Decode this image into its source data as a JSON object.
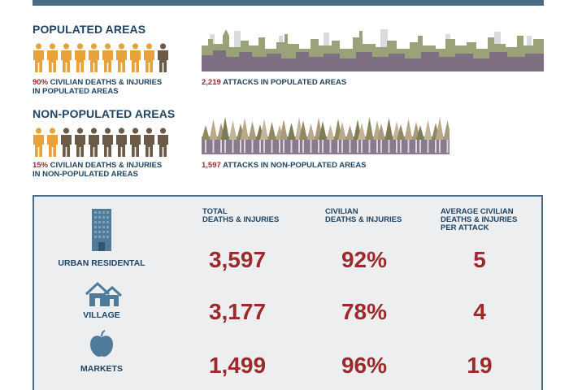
{
  "populated": {
    "heading": "POPULATED AREAS",
    "civilian_share": 0.9,
    "caption_pct": "90%",
    "caption_line1_rest": " CIVILIAN DEATHS & INJURIES",
    "caption_line2": "IN POPULATED AREAS",
    "attacks_num": "2,219",
    "attacks_rest": " ATTACKS IN POPULATED AREAS"
  },
  "nonpopulated": {
    "heading": "NON-POPULATED AREAS",
    "civilian_share": 0.15,
    "caption_pct": "15%",
    "caption_line1_rest": " CIVILIAN DEATHS & INJURIES",
    "caption_line2": "IN NON-POPULATED AREAS",
    "attacks_num": "1,597",
    "attacks_rest": " ATTACKS IN NON-POPULATED AREAS"
  },
  "colors": {
    "civilian": "#e8a23c",
    "other": "#6b5a45",
    "accent_red": "#9b2a2a",
    "navy": "#1f4464",
    "icon_blue": "#4f7a99",
    "city_front": "#7f6f83",
    "city_back": "#9aa27a"
  },
  "table": {
    "headers": {
      "total_l1": "TOTAL",
      "total_l2": "DEATHS & INJURIES",
      "civ_l1": "CIVILIAN",
      "civ_l2": "DEATHS & INJURIES",
      "avg_l1": "AVERAGE CIVILIAN",
      "avg_l2": "DEATHS & INJURIES",
      "avg_l3": "PER ATTACK"
    },
    "rows": [
      {
        "label": "URBAN RESIDENTAL",
        "icon": "building-icon",
        "total": "3,597",
        "civilian": "92%",
        "average": "5"
      },
      {
        "label": "VILLAGE",
        "icon": "house-icon",
        "total": "3,177",
        "civilian": "78%",
        "average": "4"
      },
      {
        "label": "MARKETS",
        "icon": "apple-icon",
        "total": "1,499",
        "civilian": "96%",
        "average": "19"
      }
    ]
  }
}
